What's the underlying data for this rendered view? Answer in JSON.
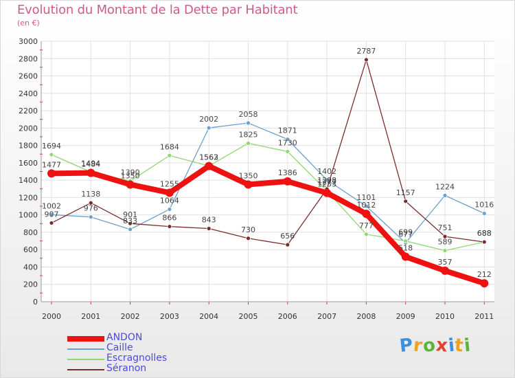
{
  "header": {
    "title": "Evolution du Montant de la Dette par Habitant",
    "subtitle": "(en €)"
  },
  "logo": {
    "letters": [
      "P",
      "r",
      "o",
      "x",
      "i",
      "t",
      "i"
    ],
    "colors": [
      "#3c8fd8",
      "#f2a023",
      "#5bb53b",
      "#e0432e",
      "#3c8fd8",
      "#f2a023",
      "#5bb53b"
    ]
  },
  "chart_data": {
    "type": "line",
    "title": "Evolution du Montant de la Dette par Habitant",
    "subtitle": "(en €)",
    "x": [
      "2000",
      "2001",
      "2002",
      "2003",
      "2004",
      "2005",
      "2006",
      "2007",
      "2008",
      "2009",
      "2010",
      "2011"
    ],
    "ylim": [
      0,
      3000
    ],
    "yticks": [
      0,
      200,
      400,
      600,
      800,
      1000,
      1200,
      1400,
      1600,
      1800,
      2000,
      2200,
      2400,
      2600,
      2800,
      3000
    ],
    "grid": true,
    "legend": "bottom-left",
    "series": [
      {
        "name": "ANDON",
        "color": "#ee1111",
        "values": [
          1477,
          1484,
          1350,
          1255,
          1562,
          1350,
          1386,
          1253,
          1012,
          518,
          357,
          212
        ]
      },
      {
        "name": "Caille",
        "color": "#6ea0cc",
        "values": [
          1002,
          976,
          833,
          1064,
          2002,
          2058,
          1871,
          1402,
          1101,
          677,
          1224,
          1016
        ]
      },
      {
        "name": "Escragnolles",
        "color": "#90d870",
        "values": [
          1694,
          1494,
          1390,
          1684,
          1563,
          1825,
          1730,
          1277,
          777,
          699,
          589,
          688
        ]
      },
      {
        "name": "Séranon",
        "color": "#7a2c2c",
        "values": [
          907,
          1138,
          901,
          866,
          843,
          730,
          656,
          1298,
          2787,
          1157,
          751,
          688
        ]
      }
    ]
  }
}
